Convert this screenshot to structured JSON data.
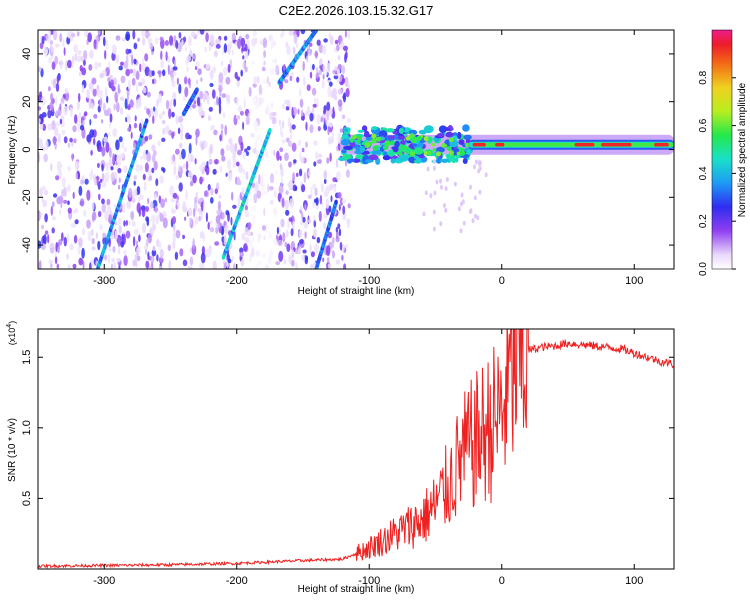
{
  "title": "C2E2.2026.103.15.32.G17",
  "chart_data": [
    {
      "type": "heatmap",
      "xlabel": "Height of straight line (km)",
      "ylabel": "Frequency (Hz)",
      "xlim": [
        -350,
        130
      ],
      "ylim": [
        -50,
        50
      ],
      "xticks": [
        -300,
        -200,
        -100,
        0,
        100
      ],
      "yticks": [
        -40,
        -20,
        0,
        20,
        40
      ],
      "colorbar": {
        "label": "Normalized spectral amplitude",
        "range": [
          0.0,
          1.0
        ],
        "ticks": [
          0.0,
          0.2,
          0.4,
          0.6,
          0.8
        ],
        "tick_labels": [
          "0.0",
          "0.2",
          "0.4",
          "0.6",
          "0.8"
        ]
      },
      "features": [
        {
          "name": "noise-field",
          "x_range": [
            -350,
            -115
          ],
          "freq_range": [
            -50,
            50
          ],
          "amplitude": 0.1
        },
        {
          "name": "streak-1",
          "x": [
            -305,
            -268
          ],
          "freq": [
            -50,
            12
          ],
          "amplitude": 0.35
        },
        {
          "name": "streak-2",
          "x": [
            -210,
            -175
          ],
          "freq": [
            -45,
            8
          ],
          "amplitude": 0.4
        },
        {
          "name": "streak-3",
          "x": [
            -168,
            -140
          ],
          "freq": [
            28,
            50
          ],
          "amplitude": 0.35
        },
        {
          "name": "streak-4",
          "x": [
            -140,
            -125
          ],
          "freq": [
            -50,
            -22
          ],
          "amplitude": 0.3
        },
        {
          "name": "streak-5",
          "x": [
            -240,
            -230
          ],
          "freq": [
            15,
            25
          ],
          "amplitude": 0.3
        },
        {
          "name": "carrier",
          "x_range": [
            -120,
            130
          ],
          "freq": 2,
          "amplitude": 0.8
        }
      ]
    },
    {
      "type": "line",
      "xlabel": "Height of straight line (km)",
      "ylabel": "SNR (10 * v/v)",
      "y_multiplier": "(x10",
      "y_multiplier_exp": "4",
      "y_multiplier_close": ")",
      "xlim": [
        -350,
        130
      ],
      "ylim": [
        0,
        1.7
      ],
      "xticks": [
        -300,
        -200,
        -100,
        0,
        100
      ],
      "yticks": [
        0.5,
        1.0,
        1.5
      ],
      "ytick_labels": [
        "0.5",
        "1.0",
        "1.5"
      ],
      "color": "#ee2020",
      "series": [
        {
          "name": "SNR",
          "x": [
            -350,
            -300,
            -250,
            -200,
            -150,
            -120,
            -100,
            -80,
            -60,
            -50,
            -40,
            -30,
            -20,
            -10,
            0,
            5,
            10,
            20,
            30,
            40,
            50,
            60,
            70,
            80,
            90,
            100,
            110,
            120,
            130
          ],
          "y": [
            0.02,
            0.025,
            0.03,
            0.04,
            0.06,
            0.07,
            0.15,
            0.25,
            0.35,
            0.45,
            0.6,
            0.8,
            0.9,
            1.0,
            1.1,
            1.3,
            1.45,
            1.55,
            1.57,
            1.58,
            1.6,
            1.59,
            1.58,
            1.57,
            1.56,
            1.53,
            1.5,
            1.47,
            1.45
          ]
        }
      ]
    }
  ]
}
